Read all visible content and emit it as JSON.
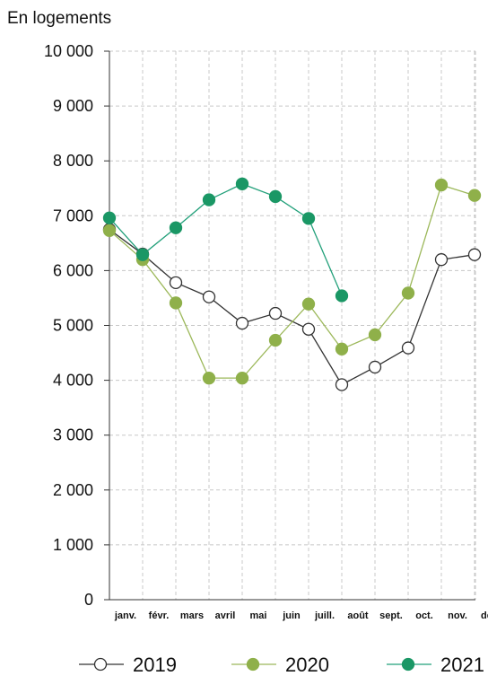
{
  "chart_data": {
    "type": "line",
    "unit_label": "En logements",
    "categories": [
      "janv.",
      "févr.",
      "mars",
      "avril",
      "mai",
      "juin",
      "juill.",
      "août",
      "sept.",
      "oct.",
      "nov.",
      "déc."
    ],
    "ylim": [
      0,
      10000
    ],
    "yticks": [
      {
        "value": 0,
        "label": "0"
      },
      {
        "value": 1000,
        "label": "1 000"
      },
      {
        "value": 2000,
        "label": "2 000"
      },
      {
        "value": 3000,
        "label": "3 000"
      },
      {
        "value": 4000,
        "label": "4 000"
      },
      {
        "value": 5000,
        "label": "5 000"
      },
      {
        "value": 6000,
        "label": "6 000"
      },
      {
        "value": 7000,
        "label": "7 000"
      },
      {
        "value": 8000,
        "label": "8 000"
      },
      {
        "value": 9000,
        "label": "9 000"
      },
      {
        "value": 10000,
        "label": "10 000"
      }
    ],
    "grid": true,
    "legend_position": "bottom",
    "series": [
      {
        "name": "2019",
        "line_color": "#333333",
        "marker_fill": "#ffffff",
        "marker_stroke": "#333333",
        "values": [
          6750,
          6300,
          5780,
          5520,
          5040,
          5220,
          4930,
          3920,
          4240,
          4590,
          6200,
          6290
        ]
      },
      {
        "name": "2020",
        "line_color": "#9cb85a",
        "marker_fill": "#8fb04a",
        "marker_stroke": "#8fb04a",
        "values": [
          6730,
          6200,
          5410,
          4040,
          4040,
          4730,
          5390,
          4570,
          4830,
          5590,
          7560,
          7370
        ]
      },
      {
        "name": "2021",
        "line_color": "#22a07a",
        "marker_fill": "#1a9765",
        "marker_stroke": "#1a9765",
        "values": [
          6960,
          6290,
          6780,
          7290,
          7580,
          7350,
          6950,
          5540,
          null,
          null,
          null,
          null
        ]
      }
    ]
  }
}
